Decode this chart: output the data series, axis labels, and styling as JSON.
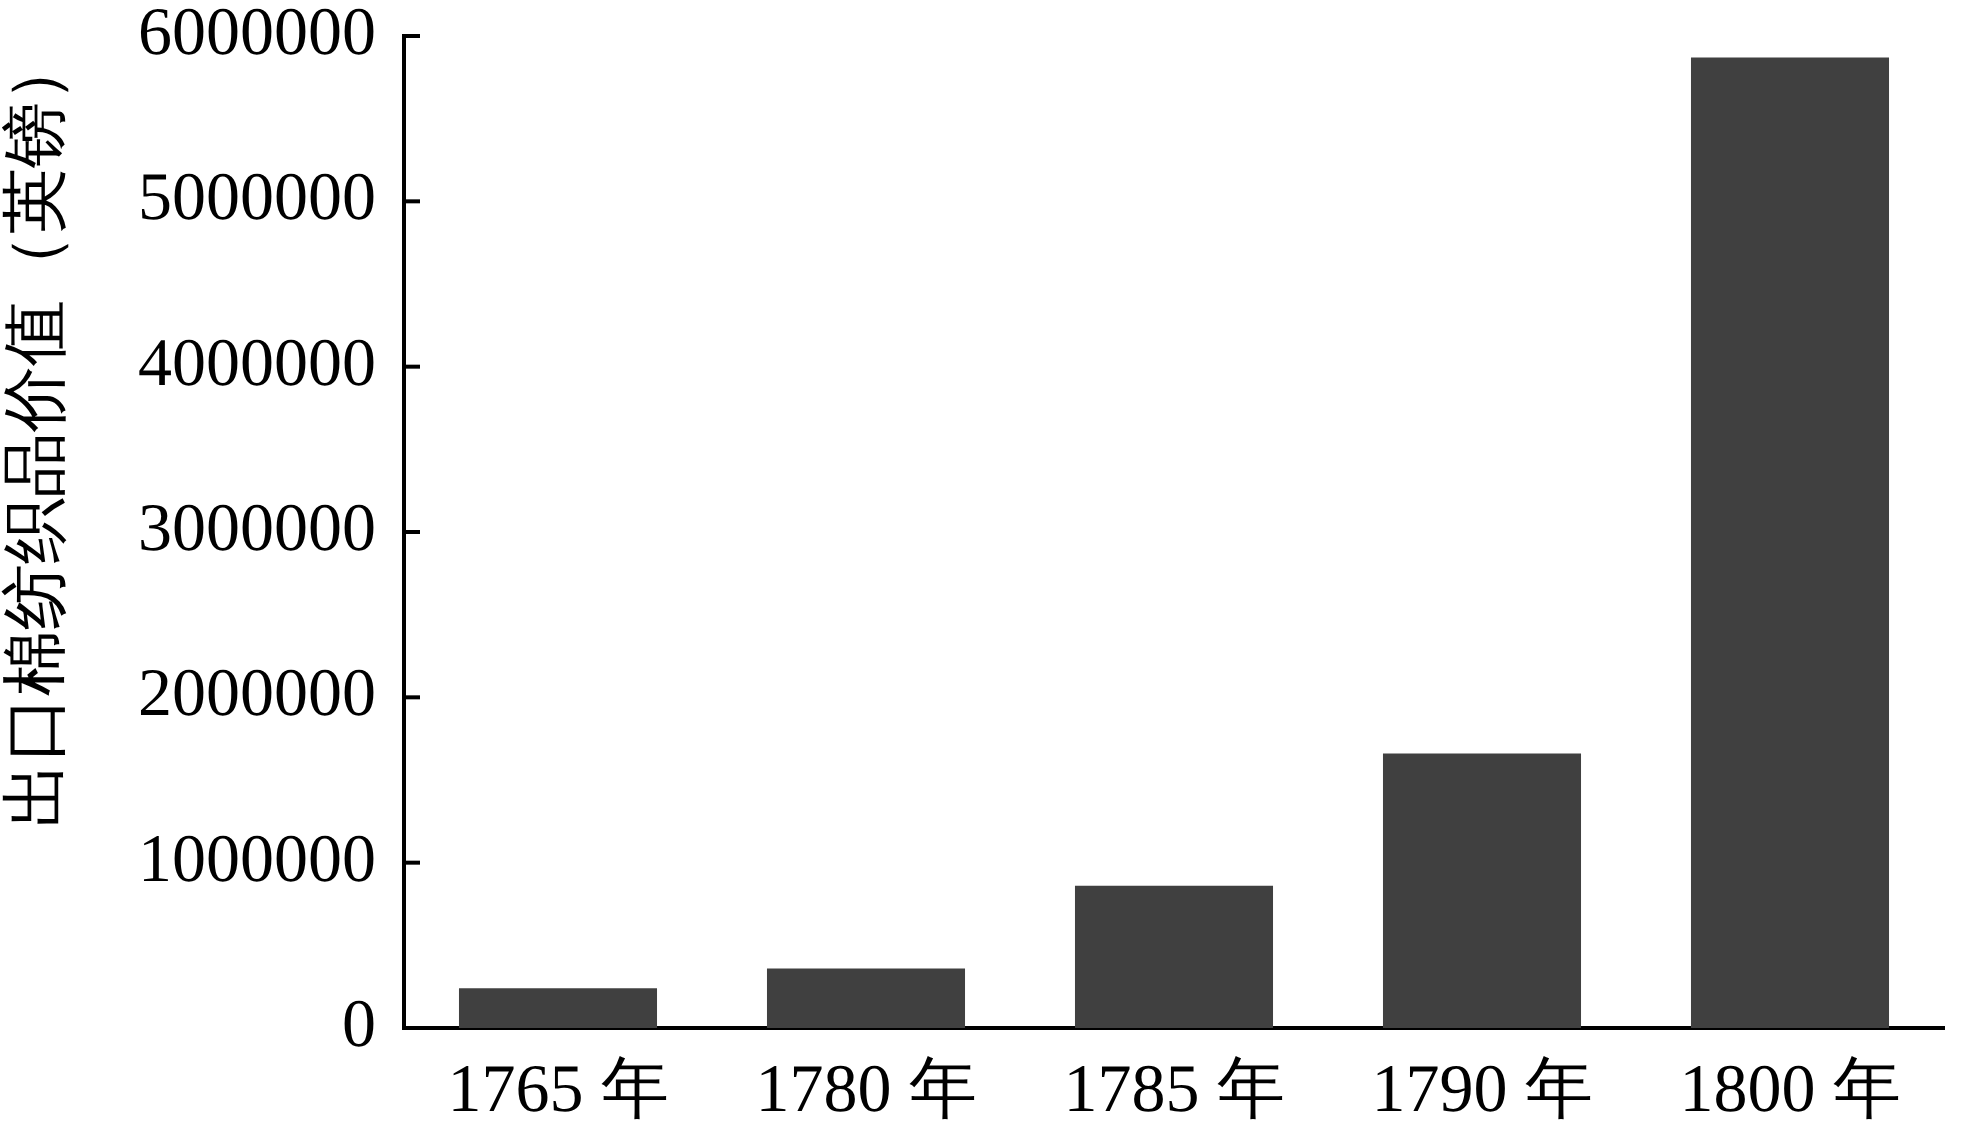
{
  "chart_data": {
    "type": "bar",
    "ylabel": "出口棉纺织品价值（英镑）",
    "categories": [
      "1765 年",
      "1780 年",
      "1785 年",
      "1790 年",
      "1800 年"
    ],
    "values": [
      240000,
      360000,
      860000,
      1660000,
      5870000
    ],
    "color": "#404040",
    "ylim": [
      0,
      6000000
    ],
    "yticks": [
      0,
      1000000,
      2000000,
      3000000,
      4000000,
      5000000,
      6000000
    ]
  }
}
